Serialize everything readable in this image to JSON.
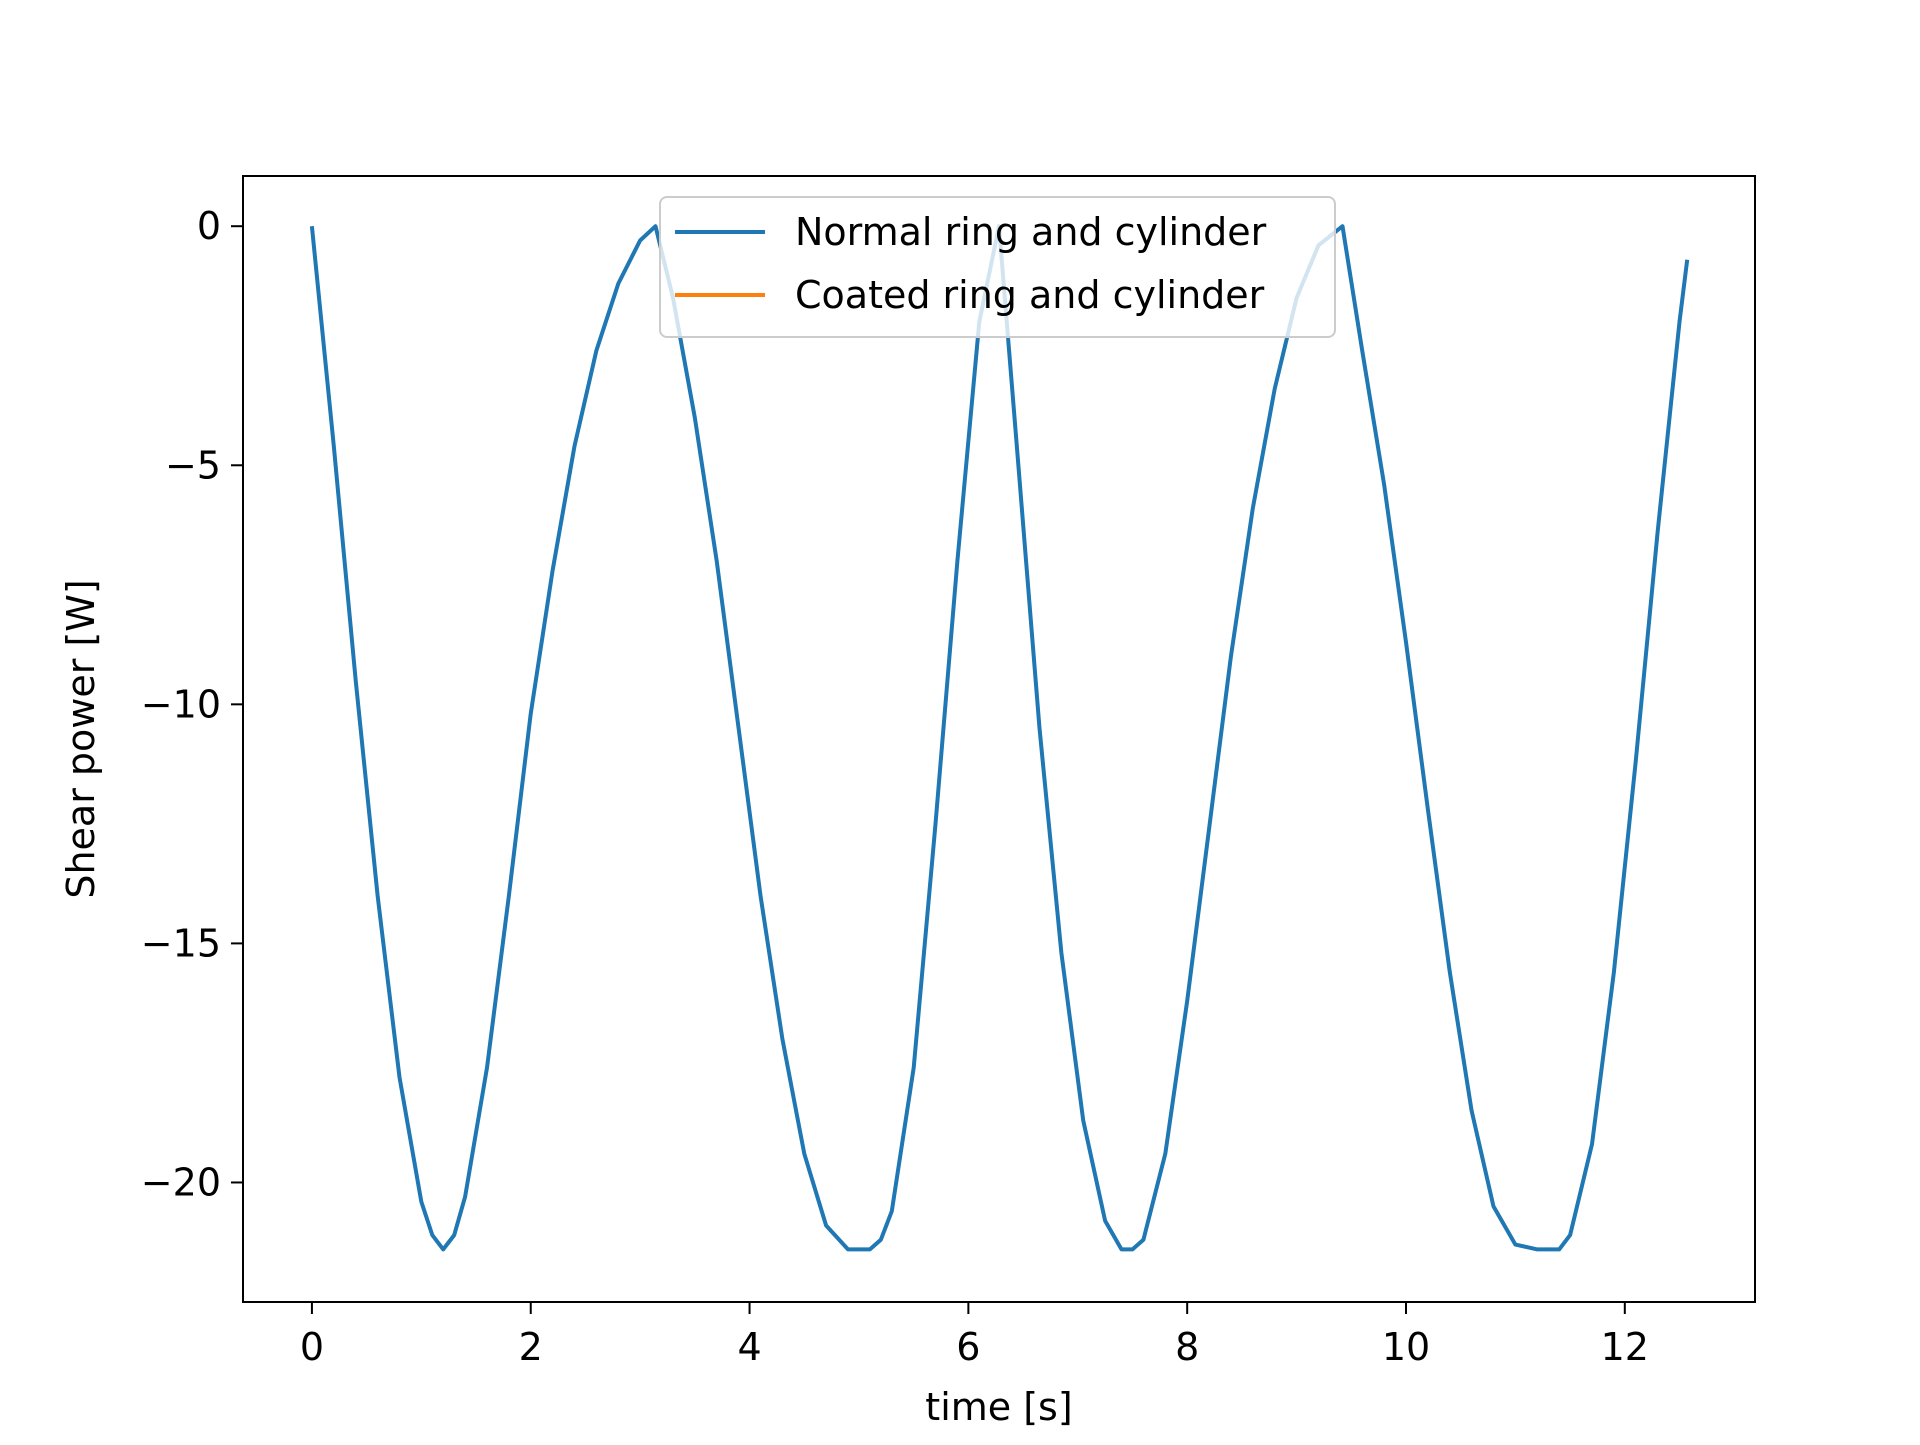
{
  "chart_data": {
    "type": "line",
    "title": "",
    "xlabel": "time [s]",
    "ylabel": "Shear power [W]",
    "xlim": [
      -0.63,
      13.19
    ],
    "ylim": [
      -22.5,
      1.05
    ],
    "xticks": [
      0,
      2,
      4,
      6,
      8,
      10,
      12
    ],
    "xtick_labels": [
      "0",
      "2",
      "4",
      "6",
      "8",
      "10",
      "12"
    ],
    "yticks": [
      0,
      -5,
      -10,
      -15,
      -20
    ],
    "ytick_labels": [
      "0",
      "−5",
      "−10",
      "−15",
      "−20"
    ],
    "grid": false,
    "legend_position": "upper center",
    "series": [
      {
        "name": "Normal ring and cylinder",
        "color": "#1f77b4",
        "visible": true,
        "x": [
          0.0,
          0.2,
          0.4,
          0.6,
          0.8,
          1.0,
          1.1,
          1.2,
          1.3,
          1.4,
          1.6,
          1.8,
          2.0,
          2.2,
          2.4,
          2.6,
          2.8,
          3.0,
          3.14,
          3.3,
          3.5,
          3.7,
          3.9,
          4.1,
          4.3,
          4.5,
          4.7,
          4.9,
          5.0,
          5.1,
          5.2,
          5.3,
          5.5,
          5.7,
          5.9,
          6.1,
          6.28,
          6.45,
          6.65,
          6.85,
          7.05,
          7.25,
          7.4,
          7.5,
          7.6,
          7.8,
          8.0,
          8.2,
          8.4,
          8.6,
          8.8,
          9.0,
          9.2,
          9.42,
          9.6,
          9.8,
          10.0,
          10.2,
          10.4,
          10.6,
          10.8,
          11.0,
          11.2,
          11.3,
          11.4,
          11.5,
          11.7,
          11.9,
          12.1,
          12.3,
          12.5,
          12.57
        ],
        "y": [
          0.0,
          -4.6,
          -9.5,
          -14.0,
          -17.8,
          -20.4,
          -21.1,
          -21.4,
          -21.1,
          -20.3,
          -17.6,
          -14.0,
          -10.2,
          -7.2,
          -4.6,
          -2.6,
          -1.2,
          -0.3,
          0.0,
          -1.5,
          -4.0,
          -7.0,
          -10.5,
          -14.0,
          -17.0,
          -19.4,
          -20.9,
          -21.4,
          -21.4,
          -21.4,
          -21.2,
          -20.6,
          -17.6,
          -12.5,
          -7.0,
          -2.0,
          0.0,
          -4.8,
          -10.5,
          -15.2,
          -18.7,
          -20.8,
          -21.4,
          -21.4,
          -21.2,
          -19.4,
          -16.2,
          -12.6,
          -9.0,
          -5.9,
          -3.4,
          -1.5,
          -0.4,
          0.0,
          -2.6,
          -5.4,
          -8.7,
          -12.2,
          -15.6,
          -18.5,
          -20.5,
          -21.3,
          -21.4,
          -21.4,
          -21.4,
          -21.1,
          -19.2,
          -15.6,
          -11.2,
          -6.4,
          -2.0,
          -0.7
        ]
      },
      {
        "name": "Coated ring and cylinder",
        "color": "#ff7f0e",
        "visible": false,
        "x": [],
        "y": []
      }
    ]
  }
}
